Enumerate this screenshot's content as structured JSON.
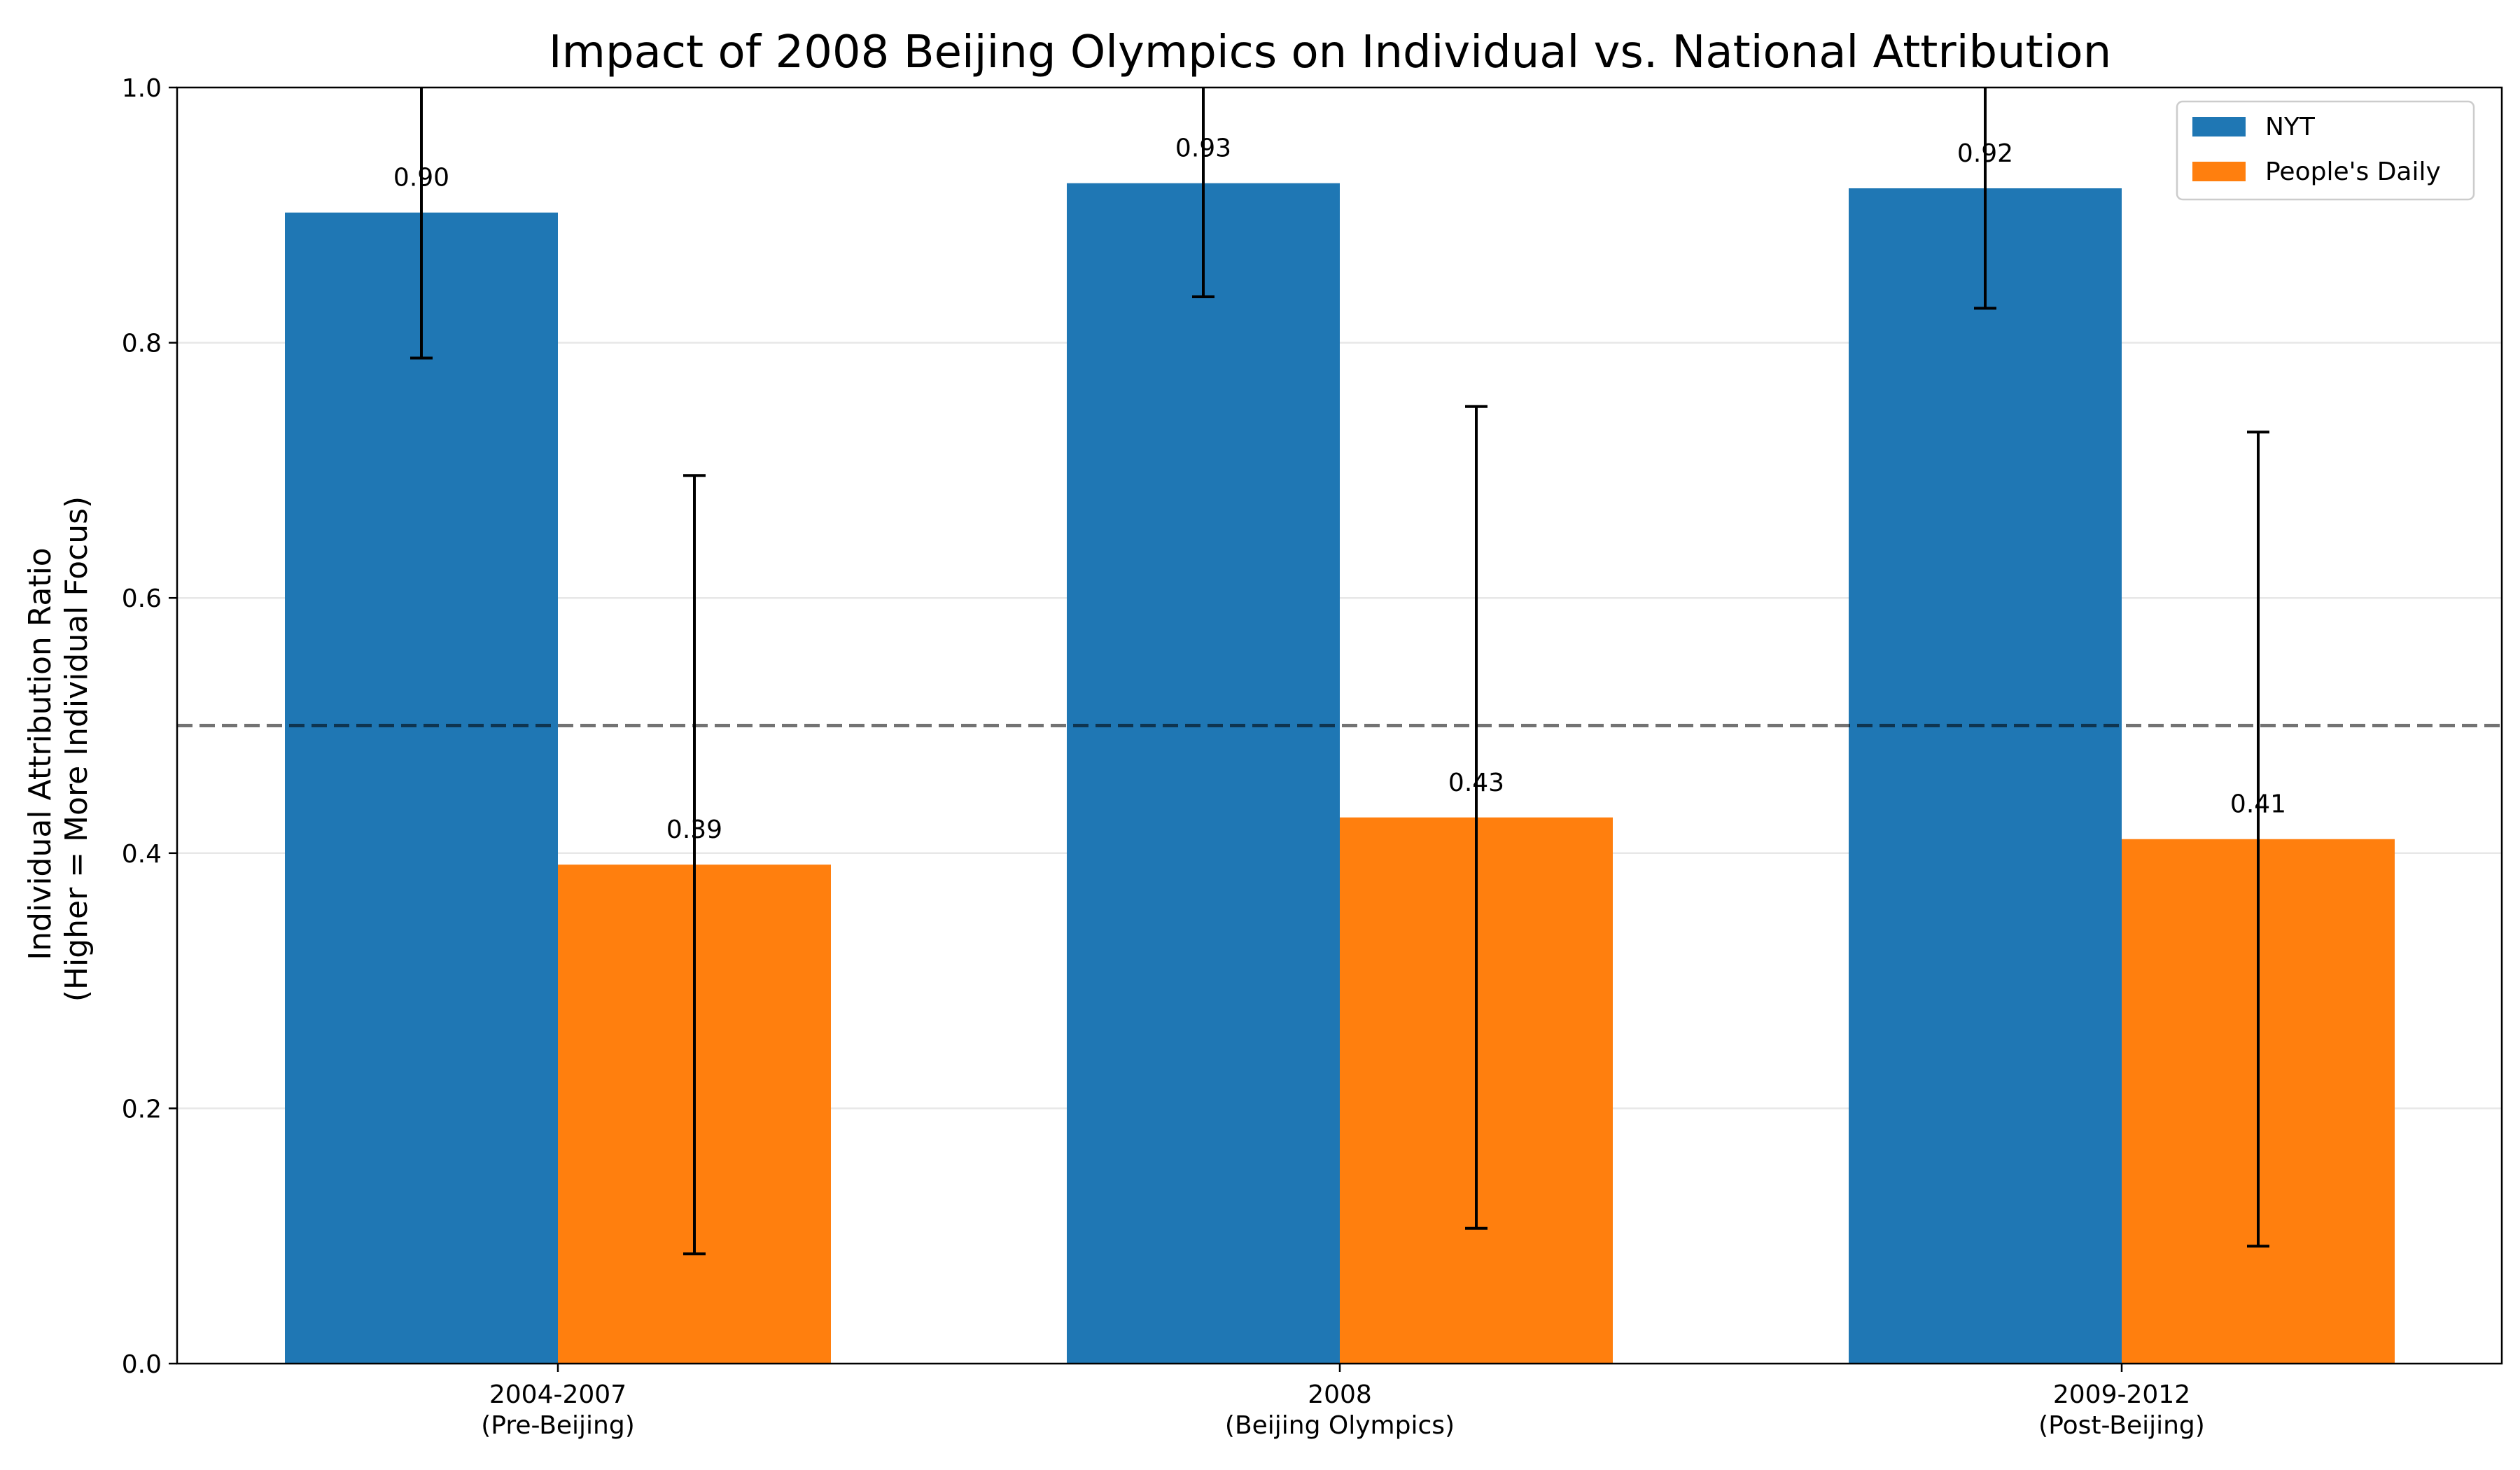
{
  "chart_data": {
    "type": "bar",
    "title": "Impact of 2008 Beijing Olympics on Individual vs. National Attribution",
    "ylabel_line1": "Individual Attribution Ratio",
    "ylabel_line2": "(Higher = More Individual Focus)",
    "xlabel": "",
    "ylim": [
      0,
      1.0
    ],
    "yticks": [
      "0.0",
      "0.2",
      "0.4",
      "0.6",
      "0.8",
      "1.0"
    ],
    "ytick_values": [
      0.0,
      0.2,
      0.4,
      0.6,
      0.8,
      1.0
    ],
    "grid": "horizontal",
    "legend_position": "top-right",
    "reference_line": 0.5,
    "categories": [
      {
        "line1": "2004-2007",
        "line2": "(Pre-Beijing)"
      },
      {
        "line1": "2008",
        "line2": "(Beijing Olympics)"
      },
      {
        "line1": "2009-2012",
        "line2": "(Post-Beijing)"
      }
    ],
    "series": [
      {
        "name": "NYT",
        "color": "#1f77b4",
        "values": [
          0.902,
          0.925,
          0.921
        ],
        "labels": [
          "0.90",
          "0.93",
          "0.92"
        ],
        "error_low": [
          0.788,
          0.836,
          0.827
        ],
        "error_high": [
          1.016,
          1.014,
          1.015
        ]
      },
      {
        "name": "People's Daily",
        "color": "#ff7f0e",
        "values": [
          0.391,
          0.428,
          0.411
        ],
        "labels": [
          "0.39",
          "0.43",
          "0.41"
        ],
        "error_low": [
          0.086,
          0.106,
          0.092
        ],
        "error_high": [
          0.696,
          0.75,
          0.73
        ]
      }
    ]
  }
}
